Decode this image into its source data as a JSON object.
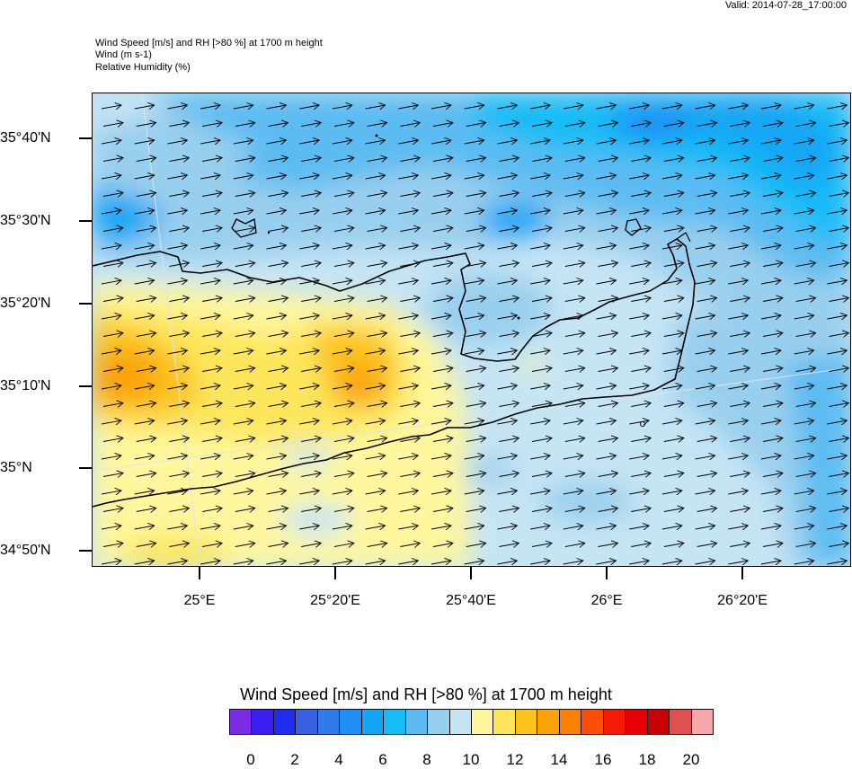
{
  "valid_time": "Valid: 2014-07-28_17:00:00",
  "header": {
    "line1": "Wind Speed [m/s] and RH [>80 %] at 1700 m height",
    "line2": "Wind   (m s-1)",
    "line3": "Relative Humidity   (%)"
  },
  "map": {
    "lat_labels": [
      "35°40'N",
      "35°30'N",
      "35°20'N",
      "35°10'N",
      "35°N",
      "34°50'N"
    ],
    "lon_labels": [
      "25°E",
      "25°20'E",
      "25°40'E",
      "26°E",
      "26°20'E"
    ],
    "wind_direction": "east"
  },
  "colorbar": {
    "title": "Wind Speed [m/s] and RH [>80 %] at 1700 m height",
    "colors": [
      "#7a2be6",
      "#3b1ff0",
      "#1f2cee",
      "#3760e0",
      "#2f7be8",
      "#1e90f5",
      "#13a6f5",
      "#17bcf7",
      "#5cbcf2",
      "#99cfee",
      "#c5e4f4",
      "#fff79e",
      "#fde65c",
      "#fcc21c",
      "#fba10a",
      "#fb8104",
      "#fb4f07",
      "#f31a08",
      "#e60006",
      "#c90003",
      "#e05050",
      "#f6a8a8"
    ],
    "tick_labels": [
      "0",
      "2",
      "4",
      "6",
      "8",
      "10",
      "12",
      "14",
      "16",
      "18",
      "20"
    ]
  }
}
